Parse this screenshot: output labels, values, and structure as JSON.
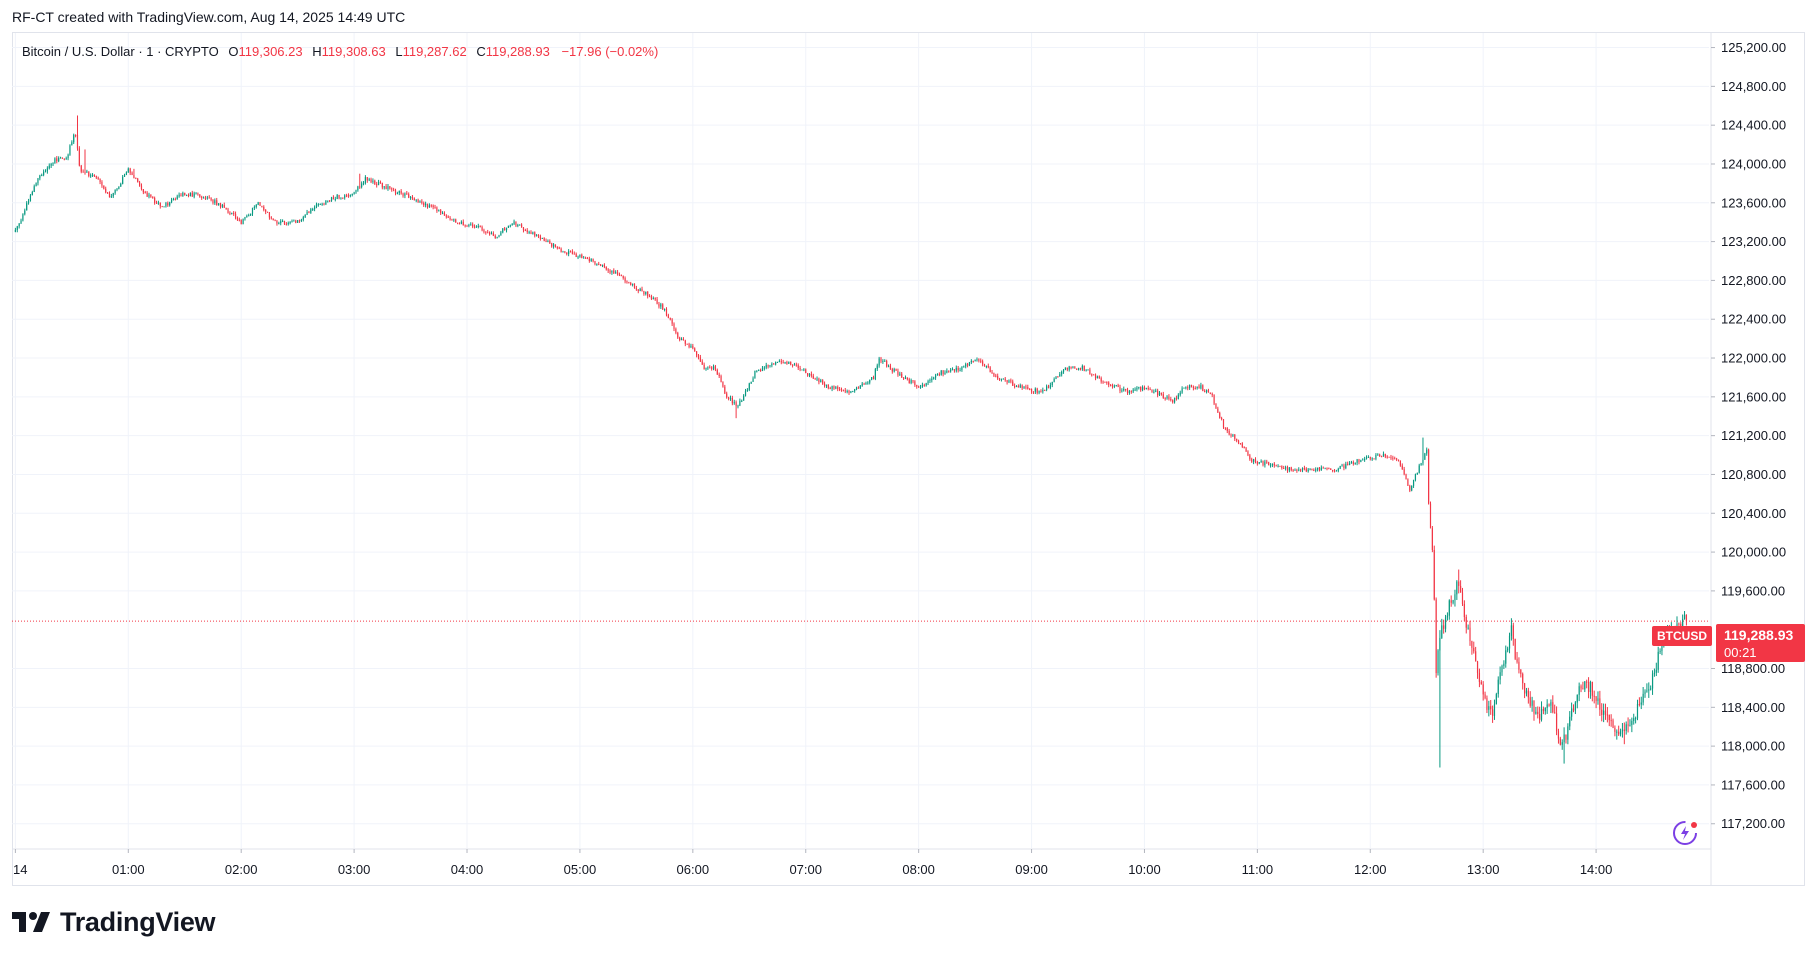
{
  "header": {
    "credit": "RF-CT created with TradingView.com, Aug 14, 2025 14:49 UTC"
  },
  "legend": {
    "symbol": "Bitcoin / U.S. Dollar · 1 · CRYPTO",
    "open_label": "O",
    "open": "119,306.23",
    "high_label": "H",
    "high": "119,308.63",
    "low_label": "L",
    "low": "119,287.62",
    "close_label": "C",
    "close": "119,288.93",
    "change": "−17.96 (−0.02%)"
  },
  "last_price": {
    "symbol": "BTCUSD",
    "price": "119,288.93",
    "countdown": "00:21"
  },
  "brand": {
    "name": "TradingView"
  },
  "colors": {
    "up": "#089981",
    "down": "#f23645",
    "grid": "#f0f3fa",
    "axis_text": "#131722"
  },
  "icons": {
    "logo": "tradingview-logo-icon",
    "assistant": "sparkle-assistant-icon"
  },
  "chart_data": {
    "type": "candlestick",
    "interval": "1 minute",
    "y_axis": {
      "side": "right",
      "ylim": [
        116950,
        125350
      ],
      "ticks": [
        125200,
        124800,
        124400,
        124000,
        123600,
        123200,
        122800,
        122400,
        122000,
        121600,
        121200,
        120800,
        120400,
        120000,
        119600,
        118800,
        118400,
        118000,
        117600,
        117200
      ],
      "tick_labels": [
        "125,200.00",
        "124,800.00",
        "124,400.00",
        "124,000.00",
        "123,600.00",
        "123,200.00",
        "122,800.00",
        "122,400.00",
        "122,000.00",
        "121,600.00",
        "121,200.00",
        "120,800.00",
        "120,400.00",
        "120,000.00",
        "119,600.00",
        "118,800.00",
        "118,400.00",
        "118,000.00",
        "117,600.00",
        "117,200.00"
      ]
    },
    "x_axis": {
      "xlim": [
        -0.03,
        15.0
      ],
      "ticks": [
        0,
        1,
        2,
        3,
        4,
        5,
        6,
        7,
        8,
        9,
        10,
        11,
        12,
        13,
        14
      ],
      "tick_labels": [
        "14",
        "01:00",
        "02:00",
        "03:00",
        "04:00",
        "05:00",
        "06:00",
        "07:00",
        "08:00",
        "09:00",
        "10:00",
        "11:00",
        "12:00",
        "13:00",
        "14:00"
      ]
    },
    "grid": true,
    "last_price_line": 119288.93,
    "end_time": 14.8,
    "path": [
      [
        0.0,
        123300
      ],
      [
        0.2,
        123850
      ],
      [
        0.35,
        124050
      ],
      [
        0.45,
        124050
      ],
      [
        0.53,
        124350
      ],
      [
        0.57,
        123950
      ],
      [
        0.72,
        123850
      ],
      [
        0.85,
        123650
      ],
      [
        1.0,
        123950
      ],
      [
        1.15,
        123700
      ],
      [
        1.3,
        123550
      ],
      [
        1.5,
        123700
      ],
      [
        1.7,
        123650
      ],
      [
        1.85,
        123550
      ],
      [
        2.0,
        123400
      ],
      [
        2.15,
        123600
      ],
      [
        2.3,
        123400
      ],
      [
        2.5,
        123400
      ],
      [
        2.65,
        123550
      ],
      [
        2.8,
        123650
      ],
      [
        3.0,
        123700
      ],
      [
        3.1,
        123850
      ],
      [
        3.3,
        123750
      ],
      [
        3.5,
        123650
      ],
      [
        3.7,
        123550
      ],
      [
        3.9,
        123400
      ],
      [
        4.1,
        123350
      ],
      [
        4.25,
        123250
      ],
      [
        4.4,
        123400
      ],
      [
        4.55,
        123300
      ],
      [
        4.7,
        123200
      ],
      [
        4.85,
        123100
      ],
      [
        5.0,
        123050
      ],
      [
        5.2,
        122950
      ],
      [
        5.4,
        122800
      ],
      [
        5.6,
        122650
      ],
      [
        5.75,
        122500
      ],
      [
        5.88,
        122200
      ],
      [
        6.0,
        122100
      ],
      [
        6.1,
        121900
      ],
      [
        6.2,
        121900
      ],
      [
        6.3,
        121600
      ],
      [
        6.4,
        121500
      ],
      [
        6.55,
        121850
      ],
      [
        6.7,
        121950
      ],
      [
        6.85,
        121950
      ],
      [
        7.0,
        121850
      ],
      [
        7.2,
        121700
      ],
      [
        7.4,
        121650
      ],
      [
        7.6,
        121800
      ],
      [
        7.65,
        122000
      ],
      [
        7.8,
        121850
      ],
      [
        8.0,
        121700
      ],
      [
        8.2,
        121850
      ],
      [
        8.4,
        121900
      ],
      [
        8.5,
        122000
      ],
      [
        8.7,
        121800
      ],
      [
        8.9,
        121700
      ],
      [
        9.1,
        121650
      ],
      [
        9.3,
        121900
      ],
      [
        9.45,
        121900
      ],
      [
        9.65,
        121750
      ],
      [
        9.85,
        121650
      ],
      [
        10.0,
        121700
      ],
      [
        10.1,
        121650
      ],
      [
        10.25,
        121550
      ],
      [
        10.35,
        121700
      ],
      [
        10.5,
        121700
      ],
      [
        10.6,
        121600
      ],
      [
        10.7,
        121300
      ],
      [
        10.85,
        121100
      ],
      [
        10.95,
        120950
      ],
      [
        11.1,
        120900
      ],
      [
        11.3,
        120850
      ],
      [
        11.5,
        120850
      ],
      [
        11.7,
        120850
      ],
      [
        11.9,
        120950
      ],
      [
        12.1,
        121000
      ],
      [
        12.25,
        120950
      ],
      [
        12.35,
        120650
      ],
      [
        12.5,
        121050
      ],
      [
        12.52,
        120400
      ],
      [
        12.56,
        119900
      ],
      [
        12.58,
        118700
      ],
      [
        12.62,
        119150
      ],
      [
        12.7,
        119450
      ],
      [
        12.78,
        119700
      ],
      [
        12.9,
        119000
      ],
      [
        13.0,
        118500
      ],
      [
        13.08,
        118300
      ],
      [
        13.18,
        118900
      ],
      [
        13.25,
        119200
      ],
      [
        13.3,
        118800
      ],
      [
        13.4,
        118500
      ],
      [
        13.5,
        118300
      ],
      [
        13.6,
        118400
      ],
      [
        13.7,
        118000
      ],
      [
        13.85,
        118600
      ],
      [
        13.95,
        118600
      ],
      [
        14.05,
        118350
      ],
      [
        14.2,
        118150
      ],
      [
        14.3,
        118250
      ],
      [
        14.4,
        118450
      ],
      [
        14.5,
        118700
      ],
      [
        14.6,
        119100
      ],
      [
        14.7,
        119250
      ],
      [
        14.8,
        119289
      ]
    ],
    "extremes": [
      [
        0.55,
        124500
      ],
      [
        0.62,
        124150
      ],
      [
        1.05,
        123950
      ],
      [
        3.05,
        123900
      ],
      [
        6.38,
        121380
      ],
      [
        12.47,
        121180
      ],
      [
        12.61,
        117780
      ],
      [
        12.78,
        119820
      ],
      [
        13.72,
        117820
      ],
      [
        14.25,
        118020
      ]
    ]
  }
}
